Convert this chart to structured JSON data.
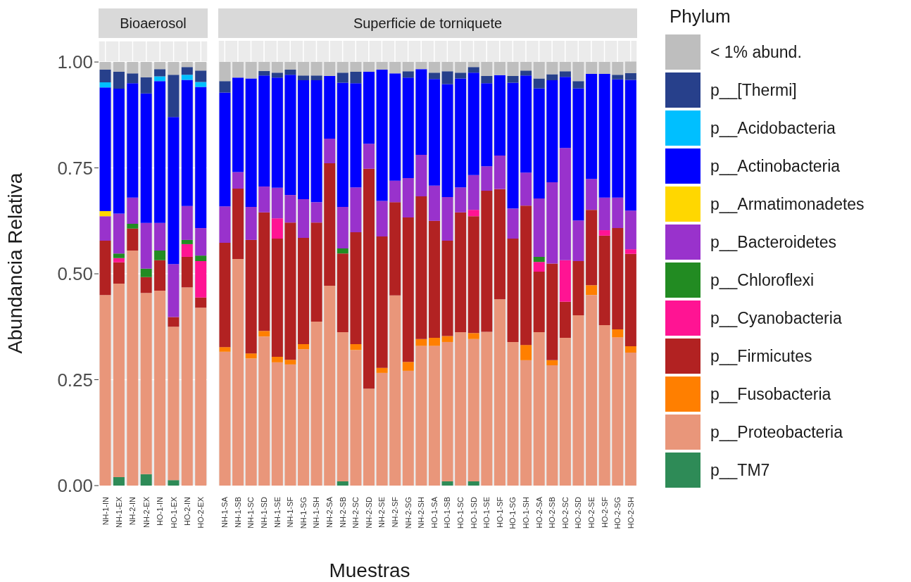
{
  "chart_data": [
    {
      "type": "bar",
      "title": "Bioaerosol",
      "ylabel": "Abundancia Relativa",
      "stacked": true,
      "grid": true,
      "legend": false,
      "categories": [
        "NH-1-IN",
        "NH-1-EX",
        "NH-2-IN",
        "NH-2-EX",
        "HO-1-IN",
        "HO-1-EX",
        "HO-2-IN",
        "HO-2-EX"
      ],
      "ylim": [
        0,
        1.05
      ],
      "yticks": [
        {
          "value": 0,
          "label": "0.00"
        },
        {
          "value": 0.25,
          "label": "0.25"
        },
        {
          "value": 0.5,
          "label": "0.50"
        },
        {
          "value": 0.75,
          "label": "0.75"
        },
        {
          "value": 1,
          "label": "1.00"
        }
      ],
      "series": [
        {
          "color": "#2e8b57",
          "values": [
            0,
            0.02,
            0,
            0.027,
            0,
            0.013,
            0,
            0
          ]
        },
        {
          "color": "#e9967a",
          "values": [
            0.45,
            0.457,
            0.555,
            0.428,
            0.46,
            0.362,
            0.468,
            0.42
          ]
        },
        {
          "color": "#ff7f00",
          "values": [
            0,
            0,
            0,
            0,
            0,
            0,
            0,
            0
          ]
        },
        {
          "color": "#b22222",
          "values": [
            0.128,
            0.05,
            0.052,
            0.037,
            0.072,
            0.023,
            0.072,
            0.024
          ]
        },
        {
          "color": "#ff1493",
          "values": [
            0,
            0.01,
            0,
            0,
            0,
            0,
            0.03,
            0.086
          ]
        },
        {
          "color": "#228b22",
          "values": [
            0,
            0.011,
            0.011,
            0.02,
            0.023,
            0,
            0.01,
            0.013
          ]
        },
        {
          "color": "#9932cc",
          "values": [
            0.058,
            0.094,
            0.062,
            0.108,
            0.065,
            0.125,
            0.08,
            0.065
          ]
        },
        {
          "color": "#ffd700",
          "values": [
            0.012,
            0,
            0,
            0,
            0,
            0,
            0,
            0
          ]
        },
        {
          "color": "#0000ff",
          "values": [
            0.292,
            0.295,
            0.27,
            0.306,
            0.335,
            0.347,
            0.298,
            0.333
          ]
        },
        {
          "color": "#00bfff",
          "values": [
            0.012,
            0,
            0,
            0,
            0.011,
            0,
            0.012,
            0.012
          ]
        },
        {
          "color": "#27408b",
          "values": [
            0.03,
            0.04,
            0.023,
            0.038,
            0.017,
            0.1,
            0.018,
            0.027
          ]
        },
        {
          "color": "#bebebe",
          "values": [
            0.018,
            0.023,
            0.027,
            0.036,
            0.017,
            0.03,
            0.012,
            0.02
          ]
        }
      ]
    },
    {
      "type": "bar",
      "title": "Superficie de torniquete",
      "xlabel": "Muestras",
      "legend_title": "Phylum",
      "stacked": true,
      "grid": true,
      "legend": "right",
      "tick_labels": "x",
      "categories": [
        "NH-1-SA",
        "NH-1-SB",
        "NH-1-SC",
        "NH-1-SD",
        "NH-1-SE",
        "NH-1-SF",
        "NH-1-SG",
        "NH-1-SH",
        "NH-2-SA",
        "NH-2-SB",
        "NH-2-SC",
        "NH-2-SD",
        "NH-2-SE",
        "NH-2-SF",
        "NH-2-SG",
        "NH-2-SH",
        "HO-1-SA",
        "HO-1-SB",
        "HO-1-SC",
        "HO-1-SD",
        "HO-1-SE",
        "HO-1-SF",
        "HO-1-SG",
        "HO-1-SH",
        "HO-2-SA",
        "HO-2-SB",
        "HO-2-SC",
        "HO-2-SD",
        "HO-2-SE",
        "HO-2-SF",
        "HO-2-SG",
        "HO-2-SH"
      ],
      "ylim": [
        0,
        1.05
      ],
      "series": [
        {
          "name": "p__TM7",
          "color": "#2e8b57",
          "values": [
            0,
            0,
            0,
            0,
            0,
            0,
            0,
            0,
            0,
            0.01,
            0,
            0,
            0,
            0,
            0,
            0,
            0,
            0.01,
            0,
            0.01,
            0,
            0,
            0,
            0,
            0,
            0,
            0,
            0,
            0,
            0,
            0,
            0
          ]
        },
        {
          "name": "p__Proteobacteria",
          "color": "#e9967a",
          "values": [
            0.316,
            0.535,
            0.3,
            0.352,
            0.291,
            0.286,
            0.322,
            0.387,
            0.472,
            0.352,
            0.32,
            0.229,
            0.266,
            0.449,
            0.271,
            0.33,
            0.33,
            0.329,
            0.362,
            0.336,
            0.363,
            0.44,
            0.339,
            0.296,
            0.362,
            0.284,
            0.349,
            0.402,
            0.45,
            0.379,
            0.35,
            0.314
          ]
        },
        {
          "name": "p__Fusobacteria",
          "color": "#ff7f00",
          "values": [
            0.011,
            0,
            0.012,
            0.013,
            0.013,
            0.011,
            0.012,
            0,
            0,
            0,
            0.014,
            0,
            0.012,
            0,
            0.021,
            0.016,
            0.019,
            0.014,
            0,
            0.014,
            0,
            0,
            0,
            0.036,
            0,
            0.012,
            0,
            0,
            0.023,
            0,
            0.019,
            0.015
          ]
        },
        {
          "name": "p__Firmicutes",
          "color": "#b22222",
          "values": [
            0.246,
            0.166,
            0.268,
            0.28,
            0.279,
            0.324,
            0.251,
            0.234,
            0.289,
            0.186,
            0.264,
            0.519,
            0.31,
            0.22,
            0.341,
            0.337,
            0.276,
            0.225,
            0.283,
            0.276,
            0.333,
            0.26,
            0.244,
            0.329,
            0.143,
            0.228,
            0.085,
            0.128,
            0.178,
            0.211,
            0.239,
            0.218
          ]
        },
        {
          "name": "p__Cyanobacteria",
          "color": "#ff1493",
          "values": [
            0,
            0,
            0,
            0,
            0.048,
            0,
            0,
            0,
            0,
            0,
            0,
            0,
            0,
            0,
            0,
            0,
            0,
            0,
            0,
            0.015,
            0,
            0,
            0,
            0,
            0.023,
            0,
            0.098,
            0,
            0,
            0.013,
            0,
            0.011
          ]
        },
        {
          "name": "p__Chloroflexi",
          "color": "#228b22",
          "values": [
            0,
            0,
            0,
            0,
            0,
            0,
            0,
            0,
            0,
            0.012,
            0,
            0,
            0,
            0,
            0,
            0,
            0,
            0,
            0,
            0,
            0,
            0,
            0,
            0,
            0.012,
            0,
            0,
            0,
            0,
            0,
            0,
            0
          ]
        },
        {
          "name": "p__Bacteroidetes",
          "color": "#9932cc",
          "values": [
            0.086,
            0.039,
            0.078,
            0.061,
            0.072,
            0.065,
            0.091,
            0.048,
            0.058,
            0.098,
            0.106,
            0.059,
            0.084,
            0.051,
            0.093,
            0.098,
            0.083,
            0.103,
            0.059,
            0.082,
            0.058,
            0.079,
            0.071,
            0.078,
            0.138,
            0.192,
            0.265,
            0.096,
            0.073,
            0.077,
            0.072,
            0.091
          ]
        },
        {
          "name": "p__Armatimonadetes",
          "color": "#ffd700",
          "values": [
            0,
            0,
            0,
            0,
            0,
            0,
            0,
            0,
            0,
            0,
            0,
            0,
            0,
            0,
            0,
            0,
            0,
            0,
            0,
            0,
            0,
            0,
            0,
            0,
            0,
            0,
            0,
            0,
            0,
            0,
            0,
            0
          ]
        },
        {
          "name": "p__Actinobacteria",
          "color": "#0000ff",
          "values": [
            0.269,
            0.223,
            0.303,
            0.262,
            0.26,
            0.284,
            0.281,
            0.288,
            0.148,
            0.293,
            0.246,
            0.17,
            0.31,
            0.253,
            0.237,
            0.202,
            0.252,
            0.267,
            0.257,
            0.242,
            0.196,
            0.19,
            0.297,
            0.229,
            0.26,
            0.241,
            0.168,
            0.312,
            0.248,
            0.292,
            0.279,
            0.309
          ]
        },
        {
          "name": "p__Acidobacteria",
          "color": "#00bfff",
          "values": [
            0,
            0,
            0,
            0,
            0,
            0,
            0,
            0,
            0,
            0,
            0,
            0,
            0,
            0,
            0,
            0,
            0,
            0,
            0,
            0,
            0,
            0,
            0,
            0,
            0,
            0,
            0,
            0,
            0,
            0,
            0,
            0
          ]
        },
        {
          "name": "p__[Thermi]",
          "color": "#27408b",
          "values": [
            0.027,
            0,
            0,
            0.011,
            0.012,
            0.012,
            0.011,
            0.011,
            0,
            0.024,
            0.027,
            0,
            0,
            0,
            0.015,
            0,
            0.015,
            0.03,
            0.014,
            0.013,
            0.017,
            0,
            0.016,
            0.012,
            0.023,
            0.014,
            0.013,
            0.017,
            0,
            0,
            0.011,
            0.016
          ]
        },
        {
          "name": "< 1% abund.",
          "color": "#bebebe",
          "values": [
            0.045,
            0.037,
            0.039,
            0.021,
            0.025,
            0.018,
            0.032,
            0.032,
            0.033,
            0.025,
            0.023,
            0.023,
            0.018,
            0.027,
            0.022,
            0.017,
            0.025,
            0.022,
            0.025,
            0.012,
            0.033,
            0.031,
            0.033,
            0.02,
            0.039,
            0.029,
            0.022,
            0.045,
            0.028,
            0.028,
            0.03,
            0.027
          ]
        }
      ]
    }
  ]
}
